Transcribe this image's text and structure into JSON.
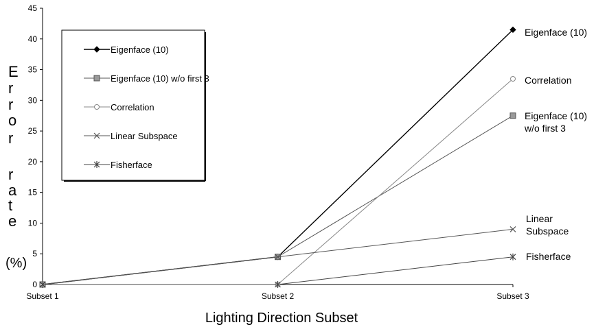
{
  "chart_data": {
    "type": "line",
    "title": "",
    "xlabel": "Lighting Direction Subset",
    "ylabel_letters": [
      "E",
      "r",
      "r",
      "o",
      "r",
      "r",
      "a",
      "t",
      "e",
      "(%)"
    ],
    "categories": [
      "Subset 1",
      "Subset 2",
      "Subset 3"
    ],
    "ylim": [
      0,
      45
    ],
    "yticks": [
      0,
      5,
      10,
      15,
      20,
      25,
      30,
      35,
      40,
      45
    ],
    "grid": false,
    "legend_placement": "top-left",
    "series": [
      {
        "name": "Eigenface (10)",
        "end_label": [
          "Eigenface (10)"
        ],
        "marker": "diamond",
        "color": "#000000",
        "values": [
          0,
          4.5,
          41.5
        ]
      },
      {
        "name": "Eigenface (10) w/o first 3",
        "end_label": [
          "Eigenface (10)",
          "w/o first 3"
        ],
        "marker": "square",
        "color": "#555555",
        "values": [
          0,
          4.5,
          27.5
        ]
      },
      {
        "name": "Correlation",
        "end_label": [
          "Correlation"
        ],
        "marker": "circle",
        "color": "#888888",
        "values": [
          0,
          0,
          33.5
        ]
      },
      {
        "name": "Linear Subspace",
        "end_label": [
          "Linear",
          "Subspace"
        ],
        "marker": "x",
        "color": "#555555",
        "values": [
          0,
          4.5,
          9
        ]
      },
      {
        "name": "Fisherface",
        "end_label": [
          "Fisherface"
        ],
        "marker": "star",
        "color": "#444444",
        "values": [
          0,
          0,
          4.5
        ]
      }
    ]
  }
}
